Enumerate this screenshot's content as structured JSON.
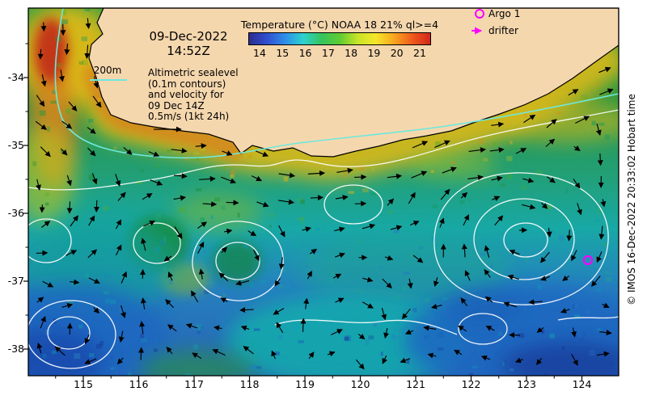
{
  "header": {
    "date": "09-Dec-2022",
    "time": "14:52Z"
  },
  "colorbar": {
    "title": "Temperature (°C) NOAA 18 21% ql>=4",
    "ticks": [
      "14",
      "15",
      "16",
      "17",
      "18",
      "19",
      "20",
      "21"
    ],
    "gradient": [
      "#2a2d8f",
      "#3050d0",
      "#2e8fe8",
      "#2ed2cf",
      "#35c45c",
      "#5ecb33",
      "#c8e428",
      "#f4e62a",
      "#f7a61f",
      "#ef5a1c",
      "#d1261a"
    ]
  },
  "legend": {
    "argo_label": "Argo 1",
    "drifter_label": "drifter",
    "marker_color": "#ff00ff"
  },
  "annotation": {
    "depth_label": "200m",
    "lines": [
      "Altimetric sealevel",
      "(0.1m contours)",
      "and velocity for",
      "09 Dec 14Z",
      "0.5m/s (1kt 24h)"
    ]
  },
  "axes": {
    "x_ticks": [
      "115",
      "116",
      "117",
      "118",
      "119",
      "120",
      "121",
      "122",
      "123",
      "124"
    ],
    "y_ticks": [
      "-34",
      "-35",
      "-36",
      "-37",
      "-38"
    ]
  },
  "credit": "© IMOS 16-Dec-2022 20:33:02 Hobart time",
  "map": {
    "land_color": "#f5d7ae",
    "contour_color": "#ffffff",
    "bathy_color": "#6ee8dc",
    "arrow_color": "#000000"
  }
}
